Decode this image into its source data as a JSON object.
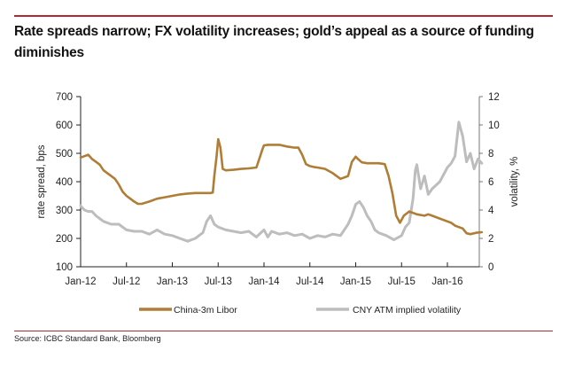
{
  "header": {
    "title": "Rate spreads narrow; FX volatility increases; gold’s appeal as a source of funding diminishes"
  },
  "footer": {
    "source": "Source:  ICBC Standard Bank, Bloomberg"
  },
  "colors": {
    "accent_rule": "#b22a2e",
    "libor": "#b07d36",
    "volatility": "#bdbdbd"
  },
  "chart_data": {
    "type": "line",
    "title": "Rate spreads narrow; FX volatility increases; gold’s appeal as a source of funding diminishes",
    "xlabel": "",
    "ylabel": "rate spread, bps",
    "y2label": "volatility, %",
    "ylim": [
      100,
      700
    ],
    "y2lim": [
      0,
      12
    ],
    "yticks": [
      "100",
      "200",
      "300",
      "400",
      "500",
      "600",
      "700"
    ],
    "y2ticks": [
      "0",
      "2",
      "4",
      "6",
      "8",
      "10",
      "12"
    ],
    "xticks": [
      "Jan-12",
      "Jul-12",
      "Jan-13",
      "Jul-13",
      "Jan-14",
      "Jul-14",
      "Jan-15",
      "Jul-15",
      "Jan-16"
    ],
    "x_unit": "months since Jan-12",
    "xlim": [
      0,
      52.5
    ],
    "grid": false,
    "legend": "bottom",
    "series": [
      {
        "name": "China-3m Libor",
        "axis": "left",
        "x": [
          0,
          0.5,
          1,
          1.5,
          2,
          2.5,
          3,
          3.5,
          4,
          4.5,
          5,
          5.5,
          6,
          6.5,
          7,
          7.5,
          8,
          9,
          10,
          11,
          12,
          13,
          14,
          15,
          16,
          17,
          17.3,
          17.5,
          17.8,
          18,
          18.3,
          18.6,
          19,
          20,
          21,
          22,
          23,
          23.5,
          23.8,
          24,
          24.5,
          25,
          26,
          27,
          28,
          28.5,
          29,
          29.5,
          30,
          30.5,
          31,
          32,
          33,
          34,
          35,
          35.5,
          36,
          36.3,
          36.8,
          37.5,
          38,
          39,
          39.8,
          40.3,
          40.8,
          41.3,
          41.8,
          42.3,
          43,
          44,
          45,
          45.5,
          46,
          47,
          48,
          48.5,
          49,
          50,
          50.5,
          51,
          51.8,
          52.5
        ],
        "values": [
          485,
          490,
          495,
          480,
          470,
          460,
          440,
          430,
          420,
          410,
          390,
          365,
          350,
          340,
          330,
          322,
          322,
          330,
          340,
          345,
          350,
          355,
          358,
          360,
          360,
          360,
          362,
          420,
          490,
          550,
          520,
          445,
          440,
          442,
          445,
          447,
          450,
          490,
          515,
          528,
          530,
          530,
          530,
          524,
          520,
          520,
          495,
          462,
          455,
          452,
          450,
          445,
          430,
          410,
          420,
          470,
          488,
          480,
          468,
          465,
          465,
          465,
          462,
          420,
          360,
          280,
          255,
          280,
          295,
          285,
          280,
          285,
          280,
          270,
          260,
          255,
          245,
          235,
          218,
          215,
          220,
          222
        ]
      },
      {
        "name": "CNY ATM implied volatility",
        "axis": "right",
        "x": [
          0,
          0.5,
          1,
          1.5,
          2,
          3,
          4,
          5,
          6,
          7,
          8,
          9,
          10,
          11,
          12,
          13,
          14,
          15,
          16,
          16.5,
          17,
          17.5,
          18,
          18.5,
          19,
          20,
          21,
          22,
          23,
          24,
          24.5,
          25,
          26,
          27,
          28,
          29,
          30,
          31,
          32,
          33,
          34,
          35,
          35.5,
          36,
          36.5,
          37,
          37.5,
          38,
          38.5,
          39,
          40,
          41,
          42,
          42.5,
          43,
          43.5,
          43.8,
          44,
          44.5,
          45,
          45.5,
          46,
          47,
          48,
          48.5,
          49,
          49.5,
          50,
          50.5,
          51,
          51.5,
          52,
          52.5
        ],
        "values": [
          4.3,
          4.0,
          3.9,
          3.9,
          3.6,
          3.2,
          3.0,
          3.0,
          2.6,
          2.5,
          2.5,
          2.3,
          2.6,
          2.3,
          2.2,
          2.0,
          1.8,
          2.0,
          2.4,
          3.2,
          3.6,
          3.0,
          2.8,
          2.7,
          2.6,
          2.5,
          2.4,
          2.5,
          2.1,
          2.6,
          2.1,
          2.5,
          2.3,
          2.4,
          2.2,
          2.3,
          2.0,
          2.2,
          2.1,
          2.3,
          2.2,
          3.0,
          3.6,
          4.4,
          4.6,
          4.2,
          3.6,
          3.2,
          2.6,
          2.4,
          2.2,
          1.9,
          2.2,
          2.8,
          3.1,
          4.8,
          6.8,
          7.2,
          5.5,
          6.4,
          5.1,
          5.5,
          6.0,
          7.0,
          7.3,
          7.8,
          10.2,
          9.2,
          7.4,
          8.0,
          6.9,
          7.6,
          7.3
        ]
      }
    ]
  }
}
